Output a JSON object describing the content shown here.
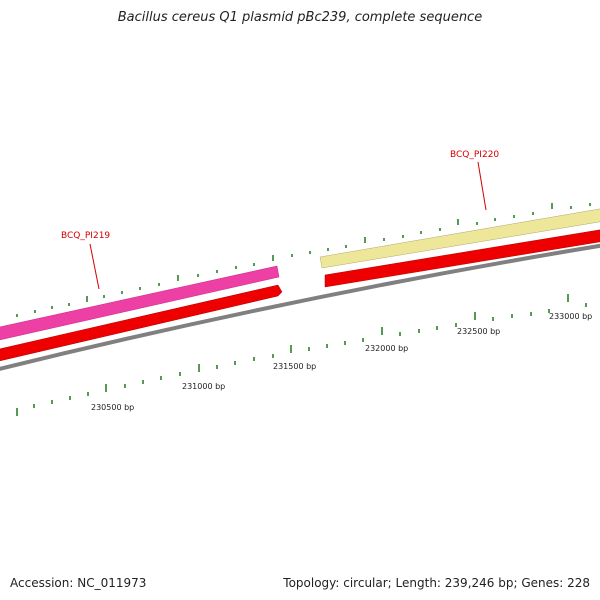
{
  "title": "Bacillus cereus Q1 plasmid pBc239, complete sequence",
  "footer": {
    "accession": "Accession: NC_011973",
    "summary": "Topology: circular; Length: 239,246 bp; Genes: 228"
  },
  "genes": [
    {
      "label": "BCQ_PI219",
      "color": "#ee3fa5"
    },
    {
      "label": "BCQ_PI220",
      "color": "#eee799"
    }
  ],
  "cds_color": "#ee0000",
  "backbone_color": "#808080",
  "tick_color": "#1a7a1a",
  "ticks": [
    {
      "label": "230500 bp"
    },
    {
      "label": "231000 bp"
    },
    {
      "label": "231500 bp"
    },
    {
      "label": "232000 bp"
    },
    {
      "label": "232500 bp"
    },
    {
      "label": "233000 bp"
    }
  ]
}
